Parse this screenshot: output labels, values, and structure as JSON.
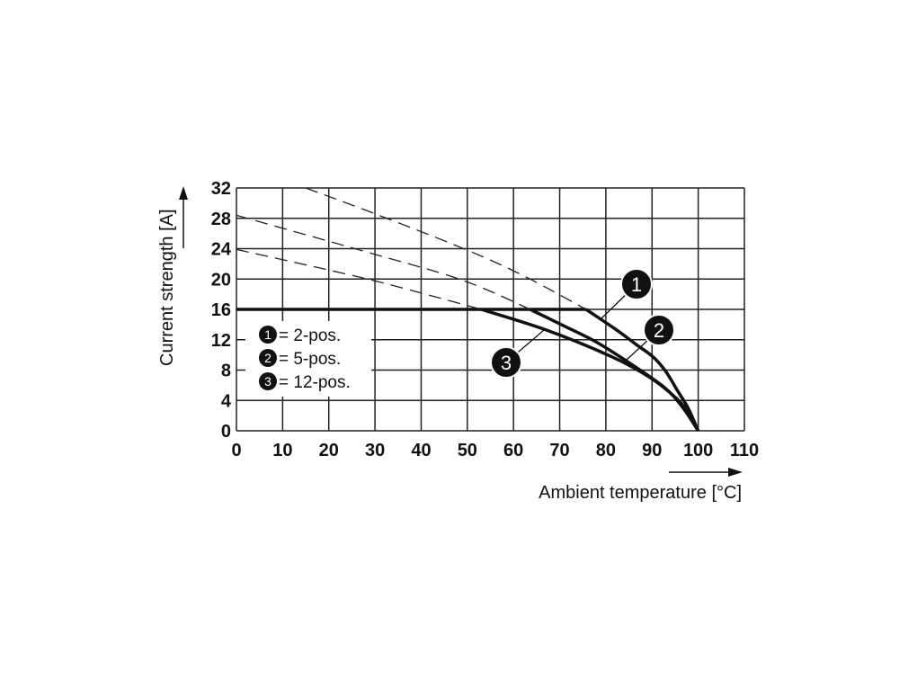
{
  "chart_data": {
    "type": "line",
    "xlabel": "Ambient temperature [°C]",
    "ylabel": "Current strength [A]",
    "xlim": [
      0,
      110
    ],
    "ylim": [
      0,
      32
    ],
    "xticks": [
      0,
      10,
      20,
      30,
      40,
      50,
      60,
      70,
      80,
      90,
      100,
      110
    ],
    "yticks": [
      0,
      4,
      8,
      12,
      16,
      20,
      24,
      28,
      32
    ],
    "grid": true,
    "rated_current_limit": 16,
    "legend_placement": "left",
    "legend": [
      {
        "marker": "1",
        "text": "= 2-pos."
      },
      {
        "marker": "2",
        "text": "= 5-pos."
      },
      {
        "marker": "3",
        "text": "= 12-pos."
      }
    ],
    "series": [
      {
        "name": "1",
        "label": "2-pos.",
        "dashed": [
          [
            15,
            32
          ],
          [
            30,
            28.6
          ],
          [
            50,
            23.8
          ],
          [
            62.6,
            20.3
          ],
          [
            75.7,
            16
          ]
        ],
        "solid": [
          [
            75.7,
            16
          ],
          [
            82.3,
            13.3
          ],
          [
            86.5,
            11.4
          ],
          [
            90.3,
            9.7
          ],
          [
            93,
            7.8
          ],
          [
            95.4,
            5.4
          ],
          [
            97.8,
            3
          ],
          [
            100,
            0
          ]
        ]
      },
      {
        "name": "2",
        "label": "5-pos.",
        "dashed": [
          [
            0,
            28.4
          ],
          [
            26.8,
            23.8
          ],
          [
            48.7,
            19.9
          ],
          [
            63.6,
            16
          ]
        ],
        "solid": [
          [
            63.6,
            16
          ],
          [
            71,
            13.8
          ],
          [
            77.9,
            11.7
          ],
          [
            85.2,
            8.9
          ],
          [
            92.5,
            5.8
          ],
          [
            96.5,
            3.2
          ],
          [
            100,
            0
          ]
        ]
      },
      {
        "name": "3",
        "label": "12-pos.",
        "dashed": [
          [
            0,
            23.9
          ],
          [
            29,
            19.9
          ],
          [
            53,
            16
          ]
        ],
        "solid": [
          [
            53,
            16
          ],
          [
            67,
            13.3
          ],
          [
            81.5,
            9.7
          ],
          [
            89.6,
            7
          ],
          [
            95.4,
            4.2
          ],
          [
            98,
            2.2
          ],
          [
            100,
            0
          ]
        ]
      }
    ]
  }
}
